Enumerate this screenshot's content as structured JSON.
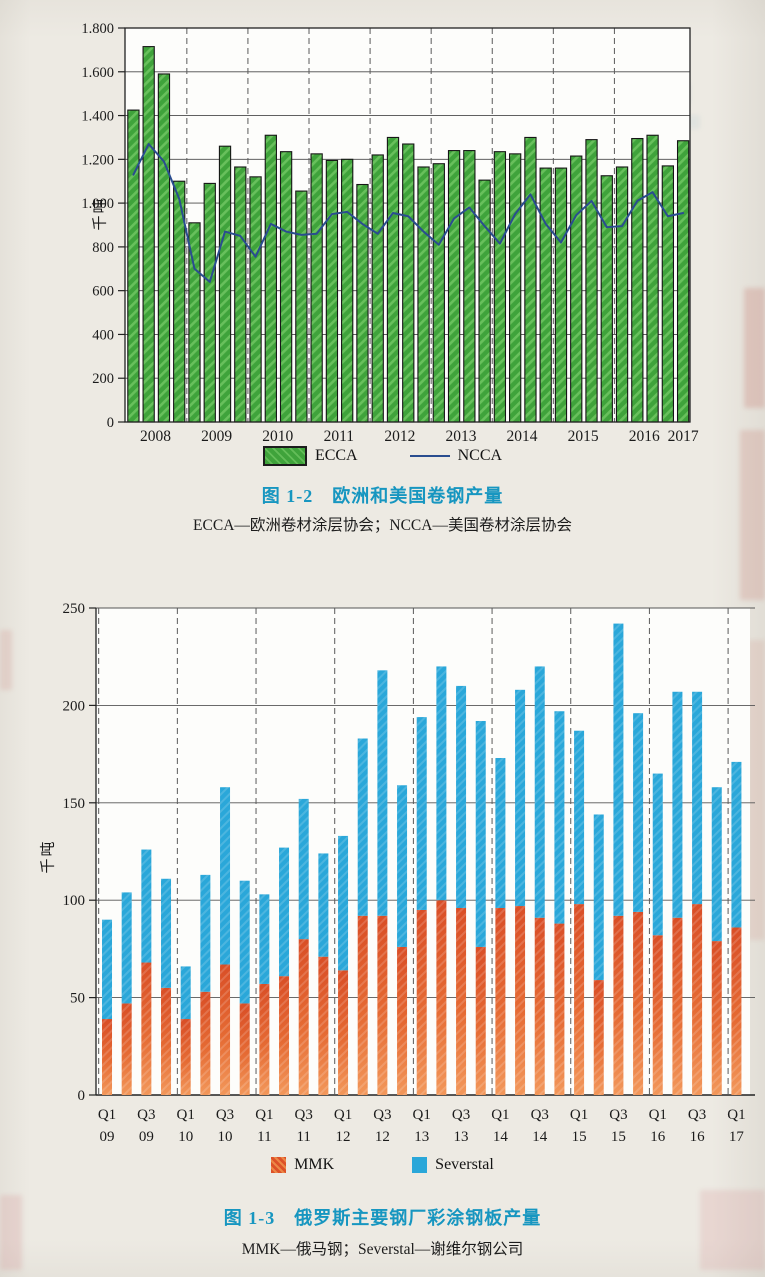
{
  "figure1": {
    "caption": "图 1-2　欧洲和美国卷钢产量",
    "subcaption": "ECCA—欧洲卷材涂层协会；NCCA—美国卷材涂层协会"
  },
  "figure2": {
    "caption": "图 1-3　俄罗斯主要钢厂彩涂钢板产量",
    "subcaption": "MMK—俄马钢；Severstal—谢维尔钢公司"
  },
  "chart_data": [
    {
      "type": "bar",
      "title": "图 1-2 欧洲和美国卷钢产量",
      "ylabel": "千吨",
      "ylim": [
        0,
        1800
      ],
      "y_tick_labels": [
        "0",
        "200",
        "400",
        "600",
        "800",
        "1.000",
        "1.200",
        "1.400",
        "1.600",
        "1.800"
      ],
      "x_year_labels": [
        "2008",
        "2009",
        "2010",
        "2011",
        "2012",
        "2013",
        "2014",
        "2015",
        "2016",
        "2017"
      ],
      "categories": [
        "2008Q1",
        "2008Q2",
        "2008Q3",
        "2008Q4",
        "2009Q1",
        "2009Q2",
        "2009Q3",
        "2009Q4",
        "2010Q1",
        "2010Q2",
        "2010Q3",
        "2010Q4",
        "2011Q1",
        "2011Q2",
        "2011Q3",
        "2011Q4",
        "2012Q1",
        "2012Q2",
        "2012Q3",
        "2012Q4",
        "2013Q1",
        "2013Q2",
        "2013Q3",
        "2013Q4",
        "2014Q1",
        "2014Q2",
        "2014Q3",
        "2014Q4",
        "2015Q1",
        "2015Q2",
        "2015Q3",
        "2015Q4",
        "2016Q1",
        "2016Q2",
        "2016Q3",
        "2016Q4",
        "2017Q1"
      ],
      "grid": "horizontal solid lines every 200, vertical dashed year separators",
      "legend_position": "bottom",
      "series": [
        {
          "name": "ECCA",
          "type": "bar",
          "color": "#3fa33b",
          "values": [
            1425,
            1715,
            1590,
            1100,
            910,
            1090,
            1260,
            1165,
            1120,
            1310,
            1235,
            1055,
            1225,
            1195,
            1200,
            1085,
            1220,
            1300,
            1270,
            1165,
            1180,
            1240,
            1240,
            1105,
            1235,
            1225,
            1300,
            1160,
            1160,
            1215,
            1290,
            1125,
            1165,
            1295,
            1310,
            1170,
            1285
          ]
        },
        {
          "name": "NCCA",
          "type": "line",
          "color": "#2a4d8f",
          "values": [
            1130,
            1270,
            1190,
            1020,
            700,
            640,
            870,
            850,
            755,
            905,
            870,
            855,
            860,
            950,
            960,
            905,
            860,
            955,
            940,
            870,
            810,
            930,
            980,
            895,
            815,
            950,
            1040,
            905,
            820,
            945,
            1010,
            890,
            895,
            1010,
            1050,
            940,
            955
          ]
        }
      ]
    },
    {
      "type": "bar",
      "stacked": true,
      "title": "图 1-3 俄罗斯主要钢厂彩涂钢板产量",
      "ylabel": "千吨",
      "ylim": [
        0,
        250
      ],
      "y_tick_labels": [
        "0",
        "50",
        "100",
        "150",
        "200",
        "250"
      ],
      "x_tick_labels": [
        "Q1 09",
        "Q3 09",
        "Q1 10",
        "Q3 10",
        "Q1 11",
        "Q3 11",
        "Q1 12",
        "Q3 12",
        "Q1 13",
        "Q3 13",
        "Q1 14",
        "Q3 14",
        "Q1 15",
        "Q3 15",
        "Q1 16",
        "Q3 16",
        "Q1 17"
      ],
      "categories": [
        "Q1 09",
        "Q2 09",
        "Q3 09",
        "Q4 09",
        "Q1 10",
        "Q2 10",
        "Q3 10",
        "Q4 10",
        "Q1 11",
        "Q2 11",
        "Q3 11",
        "Q4 11",
        "Q1 12",
        "Q2 12",
        "Q3 12",
        "Q4 12",
        "Q1 13",
        "Q2 13",
        "Q3 13",
        "Q4 13",
        "Q1 14",
        "Q2 14",
        "Q3 14",
        "Q4 14",
        "Q1 15",
        "Q2 15",
        "Q3 15",
        "Q4 15",
        "Q1 16",
        "Q2 16",
        "Q3 16",
        "Q4 16",
        "Q1 17"
      ],
      "grid": "horizontal solid lines every 50, vertical dashed year separators",
      "legend_position": "bottom",
      "series": [
        {
          "name": "MMK",
          "color": "#dd5128",
          "values": [
            39,
            47,
            68,
            55,
            39,
            53,
            67,
            47,
            57,
            61,
            80,
            71,
            64,
            92,
            92,
            76,
            95,
            100,
            96,
            76,
            96,
            97,
            91,
            88,
            98,
            59,
            92,
            94,
            82,
            91,
            98,
            79,
            86
          ]
        },
        {
          "name": "Severstal",
          "color": "#2aa7d9",
          "values": [
            51,
            57,
            58,
            56,
            27,
            60,
            91,
            63,
            46,
            66,
            72,
            53,
            69,
            91,
            126,
            83,
            99,
            120,
            114,
            116,
            77,
            111,
            129,
            109,
            89,
            85,
            150,
            102,
            83,
            116,
            109,
            79,
            85
          ]
        }
      ]
    }
  ]
}
